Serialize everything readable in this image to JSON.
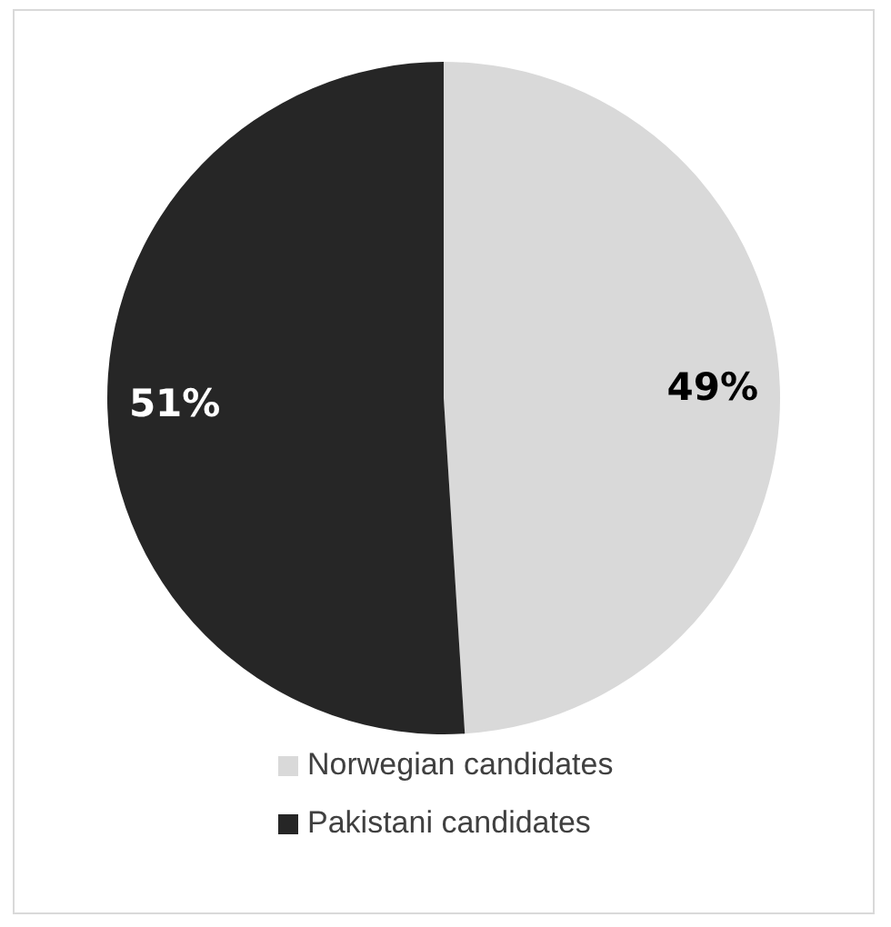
{
  "chart_data": {
    "type": "pie",
    "categories": [
      "Norwegian candidates",
      "Pakistani candidates"
    ],
    "values": [
      49,
      51
    ],
    "colors": [
      "#d9d9d9",
      "#262626"
    ],
    "value_labels": [
      "49%",
      "51%"
    ],
    "legend": "bottom"
  }
}
